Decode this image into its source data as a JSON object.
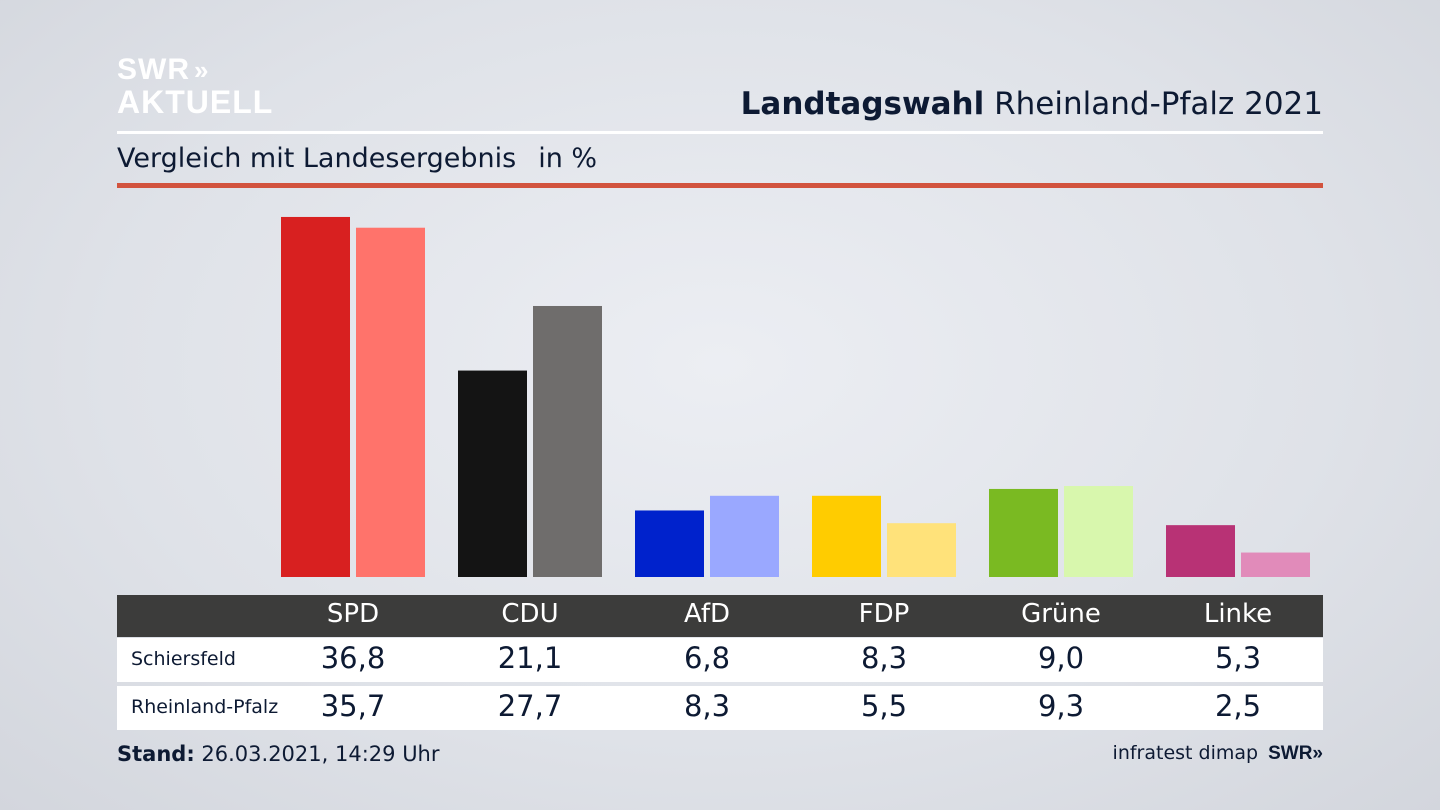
{
  "logo": {
    "line1": "SWR",
    "line2": "AKTUELL",
    "chevrons": "»"
  },
  "header": {
    "title_bold": "Landtagswahl",
    "title_rest": "Rheinland-Pfalz 2021"
  },
  "subtitle": {
    "text": "Vergleich mit Landesergebnis",
    "unit": "in %"
  },
  "footer": {
    "stand_label": "Stand:",
    "stand_value": "26.03.2021, 14:29 Uhr",
    "source": "infratest dimap",
    "brand": "SWR»"
  },
  "chart_data": {
    "type": "bar",
    "categories": [
      "SPD",
      "CDU",
      "AfD",
      "FDP",
      "Grüne",
      "Linke"
    ],
    "series": [
      {
        "name": "Schiersfeld",
        "values": [
          36.8,
          21.1,
          6.8,
          8.3,
          9.0,
          5.3
        ],
        "labels": [
          "36,8",
          "21,1",
          "6,8",
          "8,3",
          "9,0",
          "5,3"
        ]
      },
      {
        "name": "Rheinland-Pfalz",
        "values": [
          35.7,
          27.7,
          8.3,
          5.5,
          9.3,
          2.5
        ],
        "labels": [
          "35,7",
          "27,7",
          "8,3",
          "5,5",
          "9,3",
          "2,5"
        ]
      }
    ],
    "colors": {
      "primary": [
        "#d82020",
        "#141414",
        "#0022cc",
        "#ffcc00",
        "#7aba22",
        "#b83275"
      ],
      "secondary": [
        "#ff736b",
        "#6f6d6c",
        "#9aa8ff",
        "#ffe27a",
        "#d8f7ad",
        "#e18bba"
      ]
    },
    "ylim": [
      0,
      37
    ]
  }
}
